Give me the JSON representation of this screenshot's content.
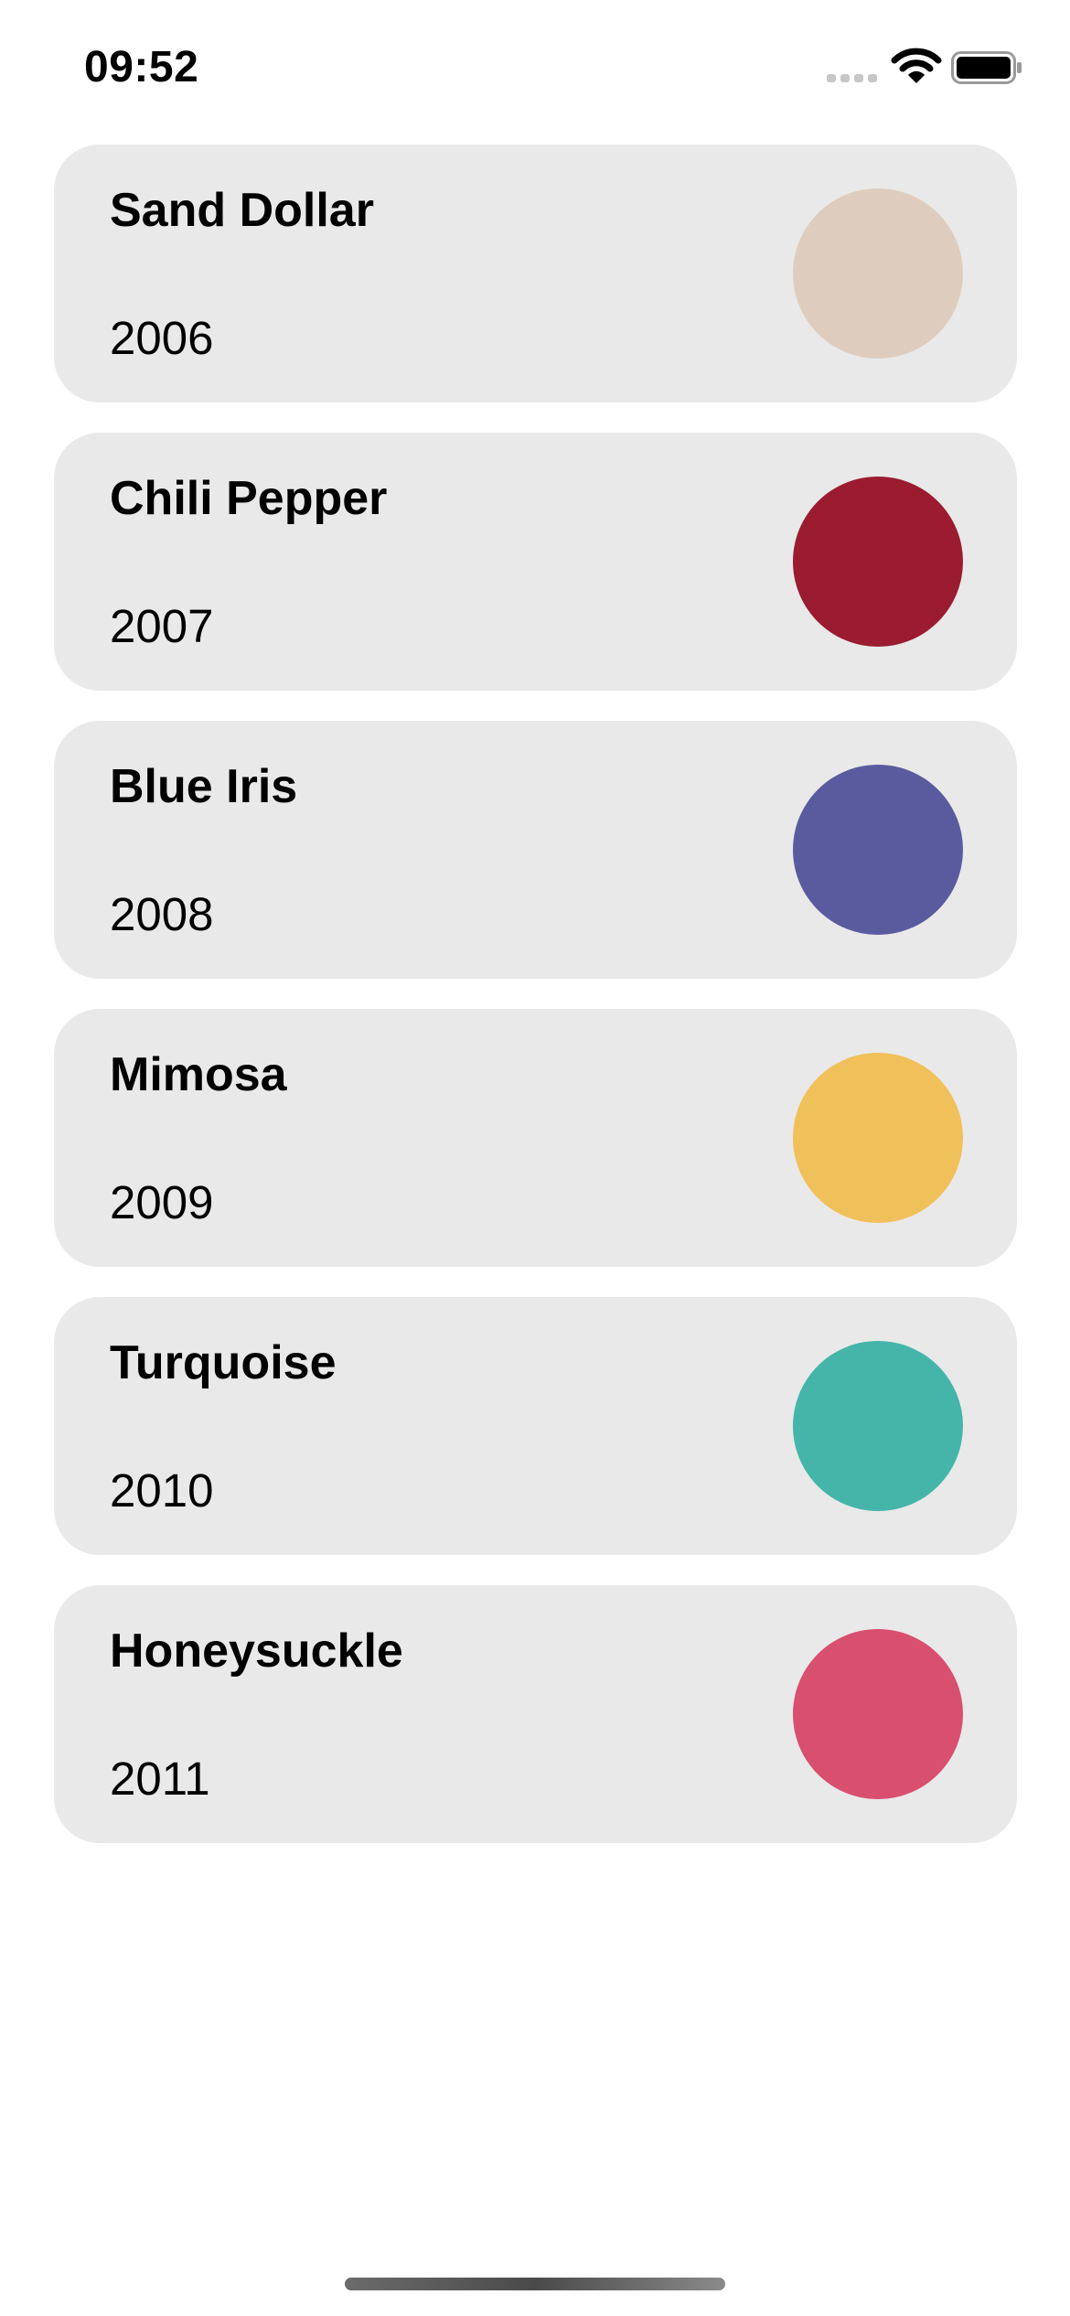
{
  "status_bar": {
    "time": "09:52",
    "icons": [
      "cellular-signal-icon",
      "wifi-icon",
      "battery-icon"
    ]
  },
  "colors": {
    "card_background": "#e9e9e9",
    "page_background": "#ffffff"
  },
  "cards": [
    {
      "name": "Sand Dollar",
      "year": "2006",
      "swatch_color": "#DECDBE"
    },
    {
      "name": "Chili Pepper",
      "year": "2007",
      "swatch_color": "#9B1B30"
    },
    {
      "name": "Blue Iris",
      "year": "2008",
      "swatch_color": "#5A5B9F"
    },
    {
      "name": "Mimosa",
      "year": "2009",
      "swatch_color": "#F0C05A"
    },
    {
      "name": "Turquoise",
      "year": "2010",
      "swatch_color": "#45B5AA"
    },
    {
      "name": "Honeysuckle",
      "year": "2011",
      "swatch_color": "#D94F70"
    }
  ]
}
